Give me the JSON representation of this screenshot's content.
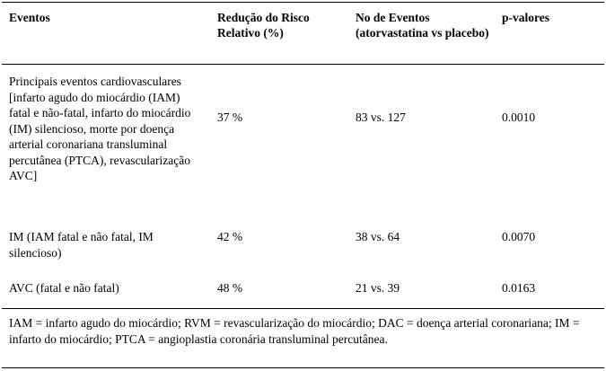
{
  "table": {
    "headers": [
      "Eventos",
      "Redução do Risco Relativo (%)",
      "No de Eventos (atorvastatina vs placebo)",
      "p-valores"
    ],
    "rows": [
      {
        "evento": "Principais eventos cardiovasculares [infarto agudo do miocárdio (IAM) fatal e não-fatal, infarto do miocárdio (IM) silencioso, morte por doença arterial coronariana transluminal percutânea (PTCA), revascularização AVC]",
        "reducao": "37 %",
        "eventos": "83 vs. 127",
        "p": "0.0010"
      },
      {
        "evento": "IM (IAM fatal e não fatal, IM silencioso)",
        "reducao": "42 %",
        "eventos": "38 vs. 64",
        "p": "0.0070"
      },
      {
        "evento": "AVC (fatal e não fatal)",
        "reducao": "48 %",
        "eventos": "21 vs. 39",
        "p": "0.0163"
      }
    ],
    "footnote": "IAM = infarto agudo do miocárdio; RVM = revascularização do miocárdio; DAC = doença arterial coronariana; IM = infarto do miocárdio; PTCA = angioplastia coronária transluminal percutânea."
  }
}
